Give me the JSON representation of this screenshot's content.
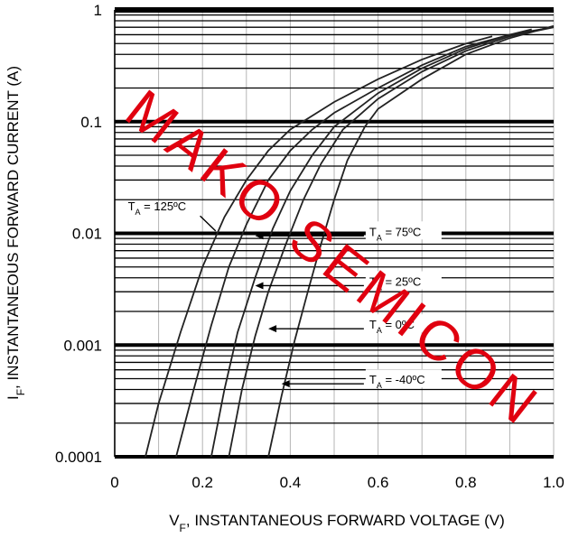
{
  "chart_data": {
    "type": "line",
    "xlabel": "V",
    "xlabel_sub": "F",
    "xlabel_rest": ", INSTANTANEOUS FORWARD VOLTAGE (V)",
    "ylabel": "I",
    "ylabel_sub": "F",
    "ylabel_rest": ", INSTANTANEOUS FORWARD CURRENT (A)",
    "xlim": [
      0,
      1.0
    ],
    "ylim": [
      0.0001,
      1
    ],
    "y_scale": "log",
    "grid": true,
    "x_ticks": [
      "0",
      "0.2",
      "0.4",
      "0.6",
      "0.8",
      "1.0"
    ],
    "y_ticks": [
      "1",
      "0.1",
      "0.01",
      "0.001",
      "0.0001"
    ],
    "series": [
      {
        "name": "T",
        "sub": "A",
        "suffix": " = 125ºC",
        "color": "#222222",
        "points": [
          [
            0.07,
            0.0001
          ],
          [
            0.1,
            0.0003
          ],
          [
            0.15,
            0.0013
          ],
          [
            0.2,
            0.005
          ],
          [
            0.25,
            0.014
          ],
          [
            0.3,
            0.03
          ],
          [
            0.35,
            0.055
          ],
          [
            0.4,
            0.085
          ],
          [
            0.5,
            0.15
          ],
          [
            0.6,
            0.24
          ],
          [
            0.7,
            0.36
          ],
          [
            0.8,
            0.5
          ],
          [
            0.86,
            0.58
          ]
        ]
      },
      {
        "name": "T",
        "sub": "A",
        "suffix": " = 75ºC",
        "color": "#222222",
        "points": [
          [
            0.14,
            0.0001
          ],
          [
            0.18,
            0.0004
          ],
          [
            0.22,
            0.0015
          ],
          [
            0.26,
            0.005
          ],
          [
            0.3,
            0.012
          ],
          [
            0.35,
            0.03
          ],
          [
            0.4,
            0.055
          ],
          [
            0.45,
            0.085
          ],
          [
            0.5,
            0.12
          ],
          [
            0.6,
            0.2
          ],
          [
            0.7,
            0.32
          ],
          [
            0.8,
            0.47
          ],
          [
            0.9,
            0.6
          ],
          [
            0.95,
            0.67
          ]
        ]
      },
      {
        "name": "T",
        "sub": "A",
        "suffix": " = 25ºC",
        "color": "#222222",
        "points": [
          [
            0.22,
            0.0001
          ],
          [
            0.25,
            0.0004
          ],
          [
            0.28,
            0.0013
          ],
          [
            0.32,
            0.004
          ],
          [
            0.36,
            0.011
          ],
          [
            0.4,
            0.024
          ],
          [
            0.45,
            0.05
          ],
          [
            0.5,
            0.09
          ],
          [
            0.6,
            0.18
          ],
          [
            0.7,
            0.3
          ],
          [
            0.8,
            0.45
          ],
          [
            0.9,
            0.6
          ],
          [
            0.98,
            0.68
          ]
        ]
      },
      {
        "name": "T",
        "sub": "A",
        "suffix": " = 0ºC",
        "color": "#222222",
        "points": [
          [
            0.26,
            0.0001
          ],
          [
            0.29,
            0.0004
          ],
          [
            0.32,
            0.0012
          ],
          [
            0.35,
            0.003
          ],
          [
            0.39,
            0.008
          ],
          [
            0.43,
            0.02
          ],
          [
            0.47,
            0.042
          ],
          [
            0.52,
            0.085
          ],
          [
            0.6,
            0.16
          ],
          [
            0.7,
            0.28
          ],
          [
            0.8,
            0.43
          ],
          [
            0.9,
            0.58
          ],
          [
            1.0,
            0.7
          ]
        ]
      },
      {
        "name": "T",
        "sub": "A",
        "suffix": " = -40ºC",
        "color": "#222222",
        "points": [
          [
            0.35,
            0.0001
          ],
          [
            0.38,
            0.00035
          ],
          [
            0.41,
            0.0011
          ],
          [
            0.44,
            0.003
          ],
          [
            0.47,
            0.008
          ],
          [
            0.5,
            0.02
          ],
          [
            0.53,
            0.045
          ],
          [
            0.57,
            0.09
          ],
          [
            0.6,
            0.13
          ],
          [
            0.7,
            0.24
          ],
          [
            0.8,
            0.4
          ],
          [
            0.9,
            0.56
          ],
          [
            1.0,
            0.72
          ]
        ]
      }
    ],
    "annotations": [
      {
        "name": "T",
        "sub": "A",
        "suffix": " = 125ºC",
        "x": 0.03,
        "y": 0.016,
        "arrow_to": [
          0.23,
          0.0105
        ]
      },
      {
        "name": "T",
        "sub": "A",
        "suffix": " = 75ºC",
        "x": 0.58,
        "y": 0.0095,
        "arrow_to": [
          0.32,
          0.0095
        ]
      },
      {
        "name": "T",
        "sub": "A",
        "suffix": " = 25ºC",
        "x": 0.58,
        "y": 0.0034,
        "arrow_to": [
          0.32,
          0.0034
        ]
      },
      {
        "name": "T",
        "sub": "A",
        "suffix": " = 0ºC",
        "x": 0.58,
        "y": 0.0014,
        "arrow_to": [
          0.35,
          0.0014
        ]
      },
      {
        "name": "T",
        "sub": "A",
        "suffix": " = -40ºC",
        "x": 0.58,
        "y": 0.00045,
        "arrow_to": [
          0.38,
          0.00045
        ]
      }
    ]
  },
  "watermark": {
    "text": "MAKO SEMICON",
    "color": "#e0000f"
  }
}
